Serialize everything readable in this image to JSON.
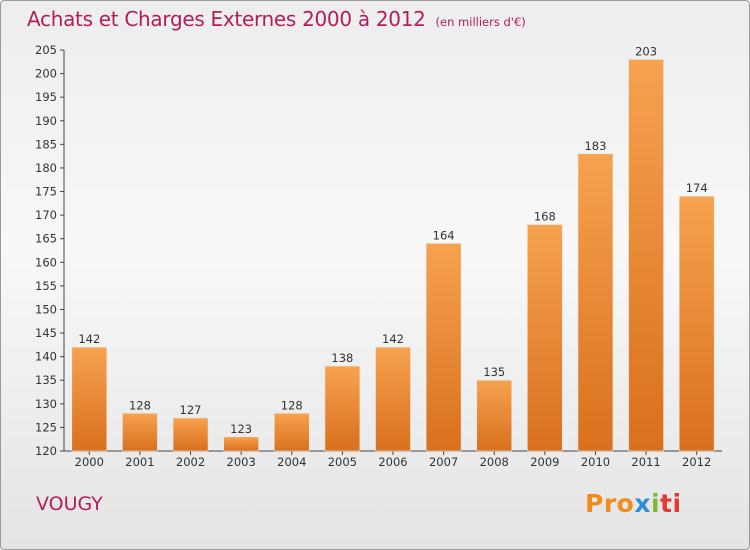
{
  "header": {
    "title": "Achats et Charges Externes 2000 à 2012",
    "subtitle": "(en milliers d'€)"
  },
  "footer": {
    "place": "VOUGY",
    "brand": "Proxiti",
    "brand_parts": [
      "Pro",
      "x",
      "i",
      "ti"
    ]
  },
  "colors": {
    "title": "#b21e5a",
    "bar_light": "#f6a24f",
    "bar_dark": "#d9701d"
  },
  "chart_data": {
    "type": "bar",
    "title": "Achats et Charges Externes 2000 à 2012",
    "subtitle": "(en milliers d'€)",
    "categories": [
      "2000",
      "2001",
      "2002",
      "2003",
      "2004",
      "2005",
      "2006",
      "2007",
      "2008",
      "2009",
      "2010",
      "2011",
      "2012"
    ],
    "values": [
      142,
      128,
      127,
      123,
      128,
      138,
      142,
      164,
      135,
      168,
      183,
      203,
      174
    ],
    "ylim": [
      120,
      205
    ],
    "yticks": [
      120,
      125,
      130,
      135,
      140,
      145,
      150,
      155,
      160,
      165,
      170,
      175,
      180,
      185,
      190,
      195,
      200,
      205
    ],
    "grid": false
  }
}
